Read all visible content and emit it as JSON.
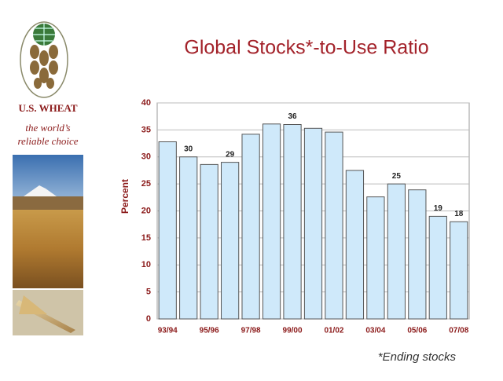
{
  "brand": {
    "name": "U.S. WHEAT",
    "tagline": [
      "the world’s",
      "reliable choice"
    ]
  },
  "chart_data": {
    "type": "bar",
    "title": "Global Stocks*-to-Use Ratio",
    "y_label": "Percent",
    "note": "*Ending stocks",
    "categories": [
      "93/94",
      null,
      "95/96",
      null,
      "97/98",
      null,
      "99/00",
      null,
      "01/02",
      null,
      "03/04",
      null,
      "05/06",
      null,
      "07/08"
    ],
    "values": [
      32.8,
      30,
      28.6,
      29,
      34.2,
      36.1,
      36,
      35.3,
      34.6,
      27.5,
      22.6,
      25,
      23.9,
      19,
      18
    ],
    "value_labels": [
      null,
      "30",
      null,
      "29",
      null,
      null,
      "36",
      null,
      null,
      null,
      null,
      "25",
      null,
      "19",
      "18"
    ],
    "color": "#cfe9fa",
    "ylim": [
      0,
      40
    ],
    "yticks": [
      0,
      5,
      10,
      15,
      20,
      25,
      30,
      35,
      40
    ],
    "grid": true
  }
}
